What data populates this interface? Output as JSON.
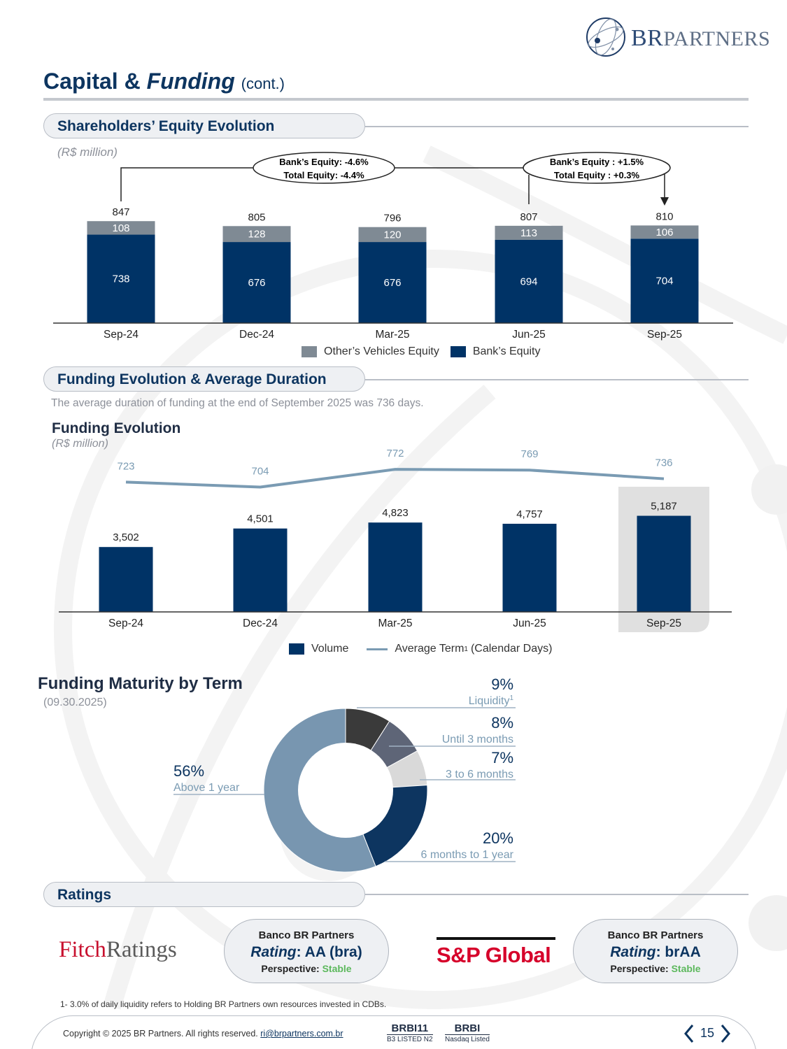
{
  "header": {
    "logo_text_br": "BR",
    "logo_text_partners": "PARTNERS",
    "title_main": "Capital &",
    "title_italic": "Funding",
    "title_suffix": "(cont.)"
  },
  "equity_section": {
    "heading": "Shareholders’ Equity Evolution",
    "unit": "(R$ million)",
    "callout_left_line1": "Bank’s Equity: -4.6%",
    "callout_left_line2": "Total Equity: -4.4%",
    "callout_right_line1": "Bank’s Equity : +1.5%",
    "callout_right_line2": "Total Equity : +0.3%",
    "legend_others": "Other’s Vehicles Equity",
    "legend_bank": "Bank’s Equity"
  },
  "funding_section": {
    "heading": "Funding Evolution & Average Duration",
    "note": "The average duration of funding at the end of September 2025 was 736 days.",
    "subtitle": "Funding Evolution",
    "unit": "(R$ million)",
    "legend_volume": "Volume",
    "legend_term": "Average Term",
    "legend_term_sup": "1",
    "legend_term_suffix": "(Calendar Days)"
  },
  "maturity_section": {
    "title": "Funding Maturity by Term",
    "date": "(09.30.2025)"
  },
  "ratings_section": {
    "heading": "Ratings",
    "fitch_logo_a": "Fitch",
    "fitch_logo_b": "Ratings",
    "sp_logo": "S&P Global",
    "fitch_card": {
      "entity": "Banco BR Partners",
      "rating_label": "Rating",
      "rating_value": ": AA (bra)",
      "perspective_label": "Perspective:",
      "perspective_value": "Stable"
    },
    "sp_card": {
      "entity": "Banco BR Partners",
      "rating_label": "Rating",
      "rating_value": ": brAA",
      "perspective_label": "Perspective:",
      "perspective_value": "Stable"
    }
  },
  "footnote": "1- 3.0% of daily liquidity refers to Holding BR Partners own resources invested in CDBs.",
  "footer": {
    "copyright": "Copyright © 2025 BR Partners. All rights reserved.",
    "email": "ri@brpartners.com.br",
    "ticker1": "BRBI11",
    "ticker1_sub": "B3 LISTED N2",
    "ticker2": "BRBI",
    "ticker2_sub": "Nasdaq Listed",
    "page_number": "15"
  },
  "colors": {
    "navy": "#003366",
    "grey": "#7f8a94",
    "line": "#7a9bb3",
    "donut": [
      "#3a3a3a",
      "#5e6577",
      "#d9d9d9",
      "#0d3560",
      "#7896b0"
    ]
  },
  "chart_data": [
    {
      "type": "bar",
      "stacked": true,
      "title": "Shareholders’ Equity Evolution",
      "ylabel": "R$ million",
      "categories": [
        "Sep-24",
        "Dec-24",
        "Mar-25",
        "Jun-25",
        "Sep-25"
      ],
      "series": [
        {
          "name": "Bank’s Equity",
          "values": [
            738,
            676,
            676,
            694,
            704
          ]
        },
        {
          "name": "Other’s Vehicles Equity",
          "values": [
            108,
            128,
            120,
            113,
            106
          ]
        }
      ],
      "totals": [
        "847",
        "805",
        "796",
        "807",
        "810"
      ],
      "ylim": [
        0,
        900
      ]
    },
    {
      "type": "bar",
      "title": "Funding Evolution",
      "ylabel": "R$ million",
      "categories": [
        "Sep-24",
        "Dec-24",
        "Mar-25",
        "Jun-25",
        "Sep-25"
      ],
      "series": [
        {
          "name": "Volume",
          "values": [
            3502,
            4501,
            4823,
            4757,
            5187
          ],
          "labels": [
            "3,502",
            "4,501",
            "4,823",
            "4,757",
            "5,187"
          ]
        },
        {
          "name": "Average Term (Calendar Days)",
          "type": "line",
          "values": [
            723,
            704,
            772,
            769,
            736
          ]
        }
      ],
      "highlight": "Sep-25",
      "ylim": [
        0,
        5200
      ]
    },
    {
      "type": "pie",
      "donut": true,
      "title": "Funding Maturity by Term",
      "slices": [
        {
          "label": "Liquidity",
          "sup": "1",
          "value": 9,
          "display": "9%"
        },
        {
          "label": "Until 3 months",
          "value": 8,
          "display": "8%"
        },
        {
          "label": "3 to 6 months",
          "value": 7,
          "display": "7%"
        },
        {
          "label": "6 months to 1 year",
          "value": 20,
          "display": "20%"
        },
        {
          "label": "Above 1 year",
          "value": 56,
          "display": "56%"
        }
      ]
    }
  ]
}
